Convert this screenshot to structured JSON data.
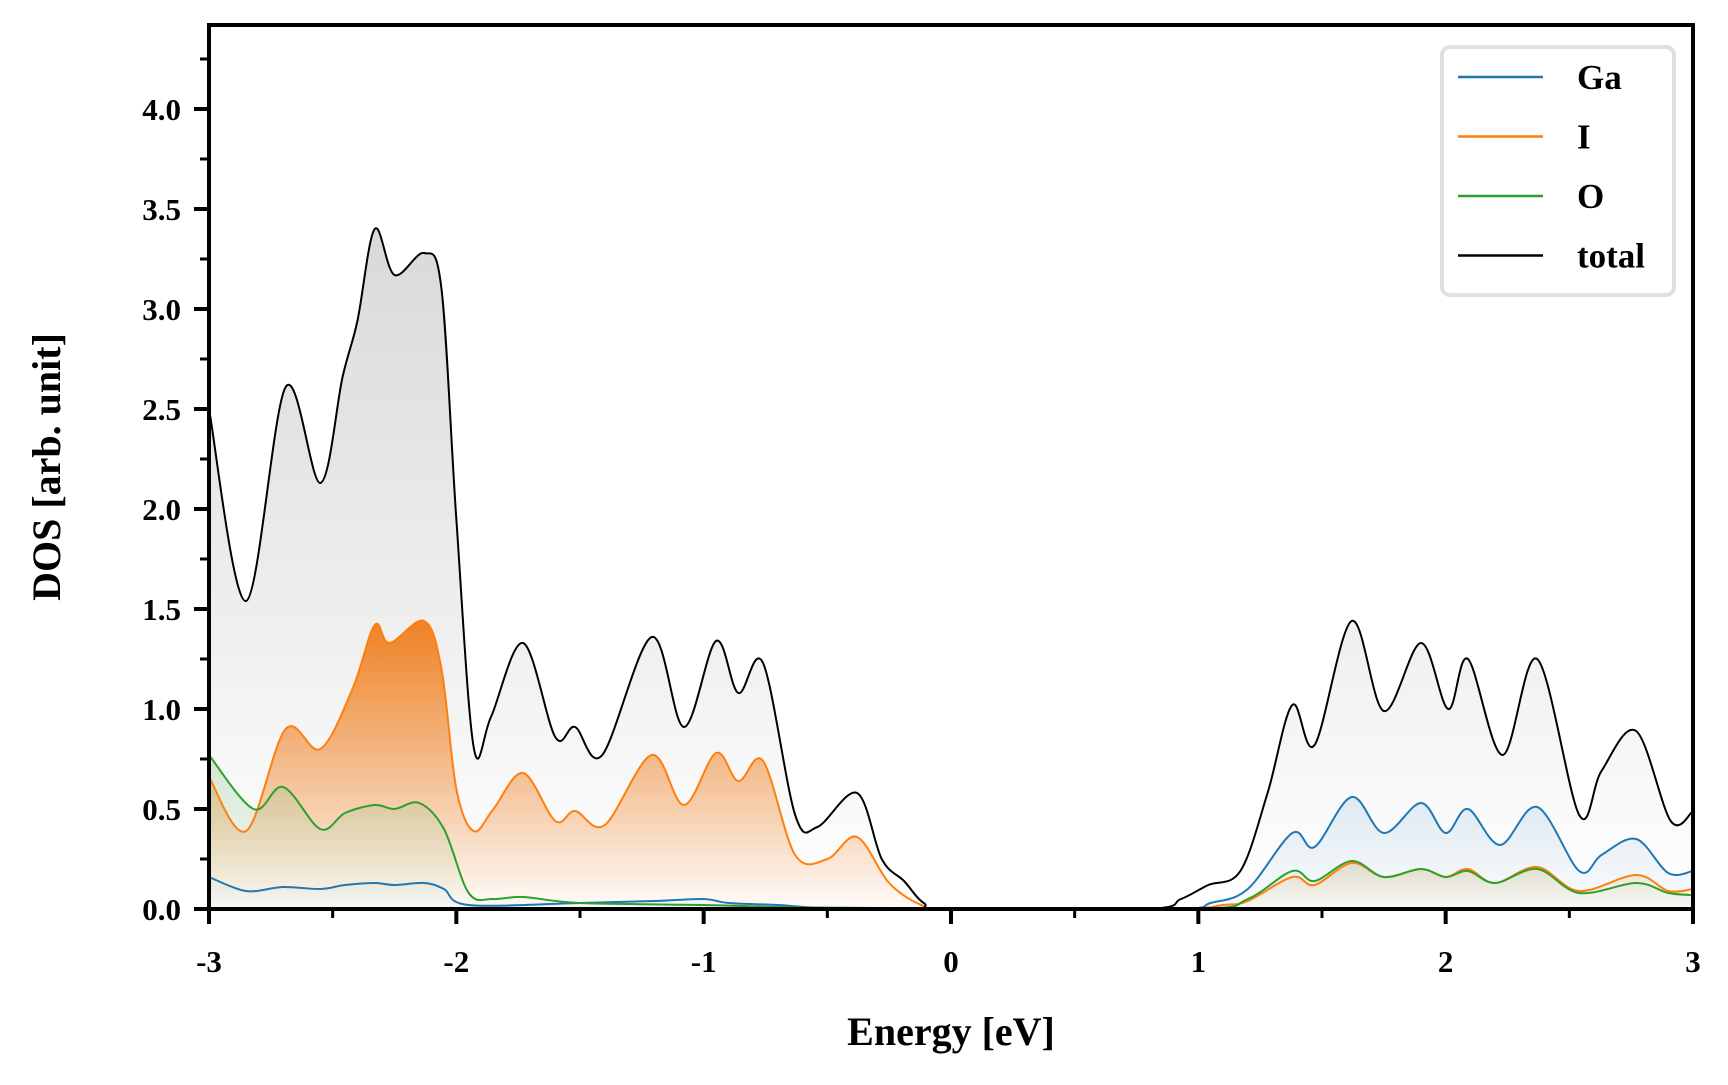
{
  "chart_data": {
    "type": "line",
    "title": "",
    "xlabel": "Energy [eV]",
    "ylabel": "DOS [arb. unit]",
    "xlim": [
      -3,
      3
    ],
    "ylim": [
      0,
      4.42
    ],
    "xticks": [
      "-3",
      "-2",
      "-1",
      "0",
      "1",
      "2",
      "3"
    ],
    "xtick_values": [
      -3,
      -2,
      -1,
      0,
      1,
      2,
      3
    ],
    "yticks": [
      "0.0",
      "0.5",
      "1.0",
      "1.5",
      "2.0",
      "2.5",
      "3.0",
      "3.5",
      "4.0"
    ],
    "ytick_values": [
      0,
      0.5,
      1,
      1.5,
      2,
      2.5,
      3,
      3.5,
      4
    ],
    "legend_placement": "top-right",
    "grid": false,
    "series": [
      {
        "name": "Ga",
        "color": "#1f77b4",
        "fill": "#1f77b4",
        "x": [
          -3,
          -2.85,
          -2.7,
          -2.55,
          -2.45,
          -2.33,
          -2.25,
          -2.13,
          -2.05,
          -1.95,
          -1.5,
          -1.2,
          -1.0,
          -0.9,
          -0.7,
          -0.5,
          0,
          0.9,
          1.05,
          1.2,
          1.38,
          1.47,
          1.62,
          1.75,
          1.9,
          2.0,
          2.09,
          2.22,
          2.37,
          2.54,
          2.63,
          2.77,
          2.9,
          3
        ],
        "y": [
          0.16,
          0.09,
          0.11,
          0.1,
          0.12,
          0.13,
          0.12,
          0.13,
          0.1,
          0.02,
          0.03,
          0.04,
          0.05,
          0.03,
          0.02,
          0.005,
          0,
          0,
          0.03,
          0.1,
          0.38,
          0.31,
          0.56,
          0.38,
          0.53,
          0.38,
          0.5,
          0.32,
          0.51,
          0.19,
          0.27,
          0.35,
          0.18,
          0.19
        ]
      },
      {
        "name": "I",
        "color": "#ff7f0e",
        "fill": "#f07d1a",
        "x": [
          -3,
          -2.85,
          -2.69,
          -2.55,
          -2.42,
          -2.33,
          -2.27,
          -2.13,
          -2.06,
          -2.0,
          -1.93,
          -1.85,
          -1.73,
          -1.6,
          -1.52,
          -1.4,
          -1.21,
          -1.08,
          -0.95,
          -0.86,
          -0.76,
          -0.63,
          -0.5,
          -0.38,
          -0.25,
          -0.12,
          0,
          0.9,
          1.1,
          1.2,
          1.38,
          1.47,
          1.62,
          1.75,
          1.9,
          2.0,
          2.09,
          2.2,
          2.37,
          2.54,
          2.77,
          2.9,
          3
        ],
        "y": [
          0.66,
          0.39,
          0.9,
          0.8,
          1.1,
          1.42,
          1.33,
          1.44,
          1.2,
          0.6,
          0.39,
          0.5,
          0.68,
          0.44,
          0.49,
          0.42,
          0.77,
          0.52,
          0.78,
          0.64,
          0.74,
          0.27,
          0.25,
          0.36,
          0.13,
          0.02,
          0,
          0,
          0.02,
          0.04,
          0.16,
          0.12,
          0.23,
          0.16,
          0.2,
          0.16,
          0.2,
          0.13,
          0.21,
          0.09,
          0.17,
          0.09,
          0.1
        ]
      },
      {
        "name": "O",
        "color": "#2ca02c",
        "fill": "#8fc88f",
        "x": [
          -3,
          -2.82,
          -2.7,
          -2.55,
          -2.45,
          -2.33,
          -2.25,
          -2.15,
          -2.05,
          -1.95,
          -1.85,
          -1.73,
          -1.5,
          -1.0,
          -0.7,
          -0.3,
          0,
          1.0,
          1.2,
          1.38,
          1.47,
          1.62,
          1.75,
          1.9,
          2.0,
          2.09,
          2.2,
          2.37,
          2.54,
          2.77,
          2.9,
          3
        ],
        "y": [
          0.77,
          0.5,
          0.61,
          0.4,
          0.48,
          0.52,
          0.5,
          0.53,
          0.4,
          0.08,
          0.05,
          0.06,
          0.03,
          0.02,
          0.01,
          0.005,
          0,
          0,
          0.05,
          0.19,
          0.14,
          0.24,
          0.16,
          0.2,
          0.16,
          0.19,
          0.13,
          0.2,
          0.08,
          0.13,
          0.08,
          0.07
        ]
      },
      {
        "name": "total",
        "color": "#000000",
        "fill": "#d9d9d9",
        "x": [
          -3,
          -2.85,
          -2.69,
          -2.55,
          -2.46,
          -2.4,
          -2.33,
          -2.25,
          -2.13,
          -2.06,
          -2.0,
          -1.93,
          -1.86,
          -1.73,
          -1.6,
          -1.52,
          -1.41,
          -1.21,
          -1.08,
          -0.95,
          -0.86,
          -0.76,
          -0.63,
          -0.54,
          -0.38,
          -0.28,
          -0.19,
          -0.11,
          -0.01,
          0.79,
          0.93,
          1.04,
          1.17,
          1.28,
          1.38,
          1.47,
          1.62,
          1.75,
          1.9,
          2.01,
          2.09,
          2.23,
          2.37,
          2.54,
          2.63,
          2.77,
          2.91,
          3
        ],
        "y": [
          2.5,
          1.54,
          2.61,
          2.13,
          2.66,
          2.94,
          3.4,
          3.17,
          3.28,
          3.1,
          1.95,
          0.81,
          0.96,
          1.33,
          0.86,
          0.91,
          0.77,
          1.36,
          0.91,
          1.34,
          1.08,
          1.23,
          0.47,
          0.41,
          0.58,
          0.25,
          0.14,
          0.03,
          0,
          0,
          0.05,
          0.12,
          0.19,
          0.58,
          1.02,
          0.82,
          1.44,
          0.99,
          1.33,
          1.0,
          1.25,
          0.77,
          1.25,
          0.47,
          0.69,
          0.89,
          0.44,
          0.49
        ]
      }
    ]
  }
}
